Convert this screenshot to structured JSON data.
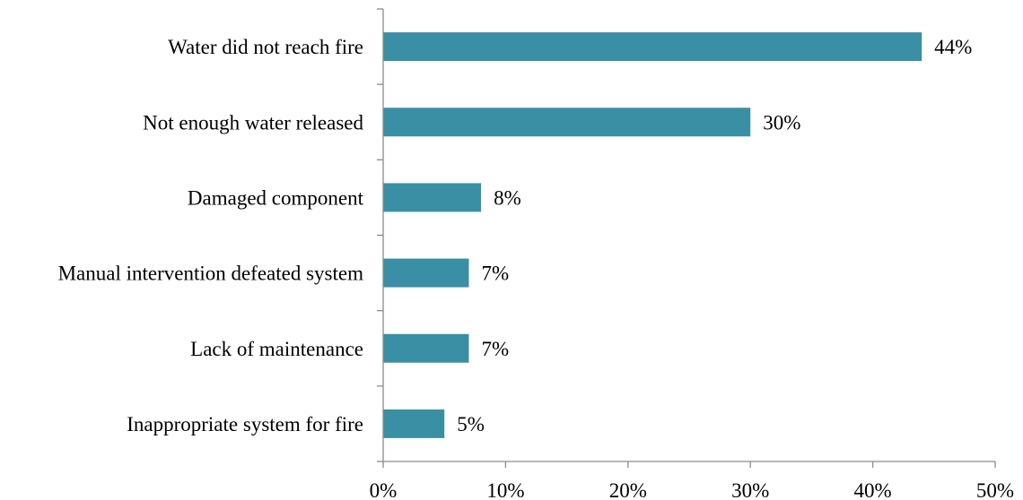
{
  "chart_data": {
    "type": "bar",
    "orientation": "horizontal",
    "categories": [
      "Water did not reach fire",
      "Not enough water released",
      "Damaged component",
      "Manual intervention defeated system",
      "Lack of maintenance",
      "Inappropriate system for fire"
    ],
    "values": [
      44,
      30,
      8,
      7,
      7,
      5
    ],
    "value_labels": [
      "44%",
      "30%",
      "8%",
      "7%",
      "7%",
      "5%"
    ],
    "xlim": [
      0,
      50
    ],
    "x_ticks": [
      0,
      10,
      20,
      30,
      40,
      50
    ],
    "x_tick_labels": [
      "0%",
      "10%",
      "20%",
      "30%",
      "40%",
      "50%"
    ],
    "bar_color": "#3a8fa5",
    "axis_color": "#8c8c8c",
    "grid": false,
    "legend": "none"
  }
}
